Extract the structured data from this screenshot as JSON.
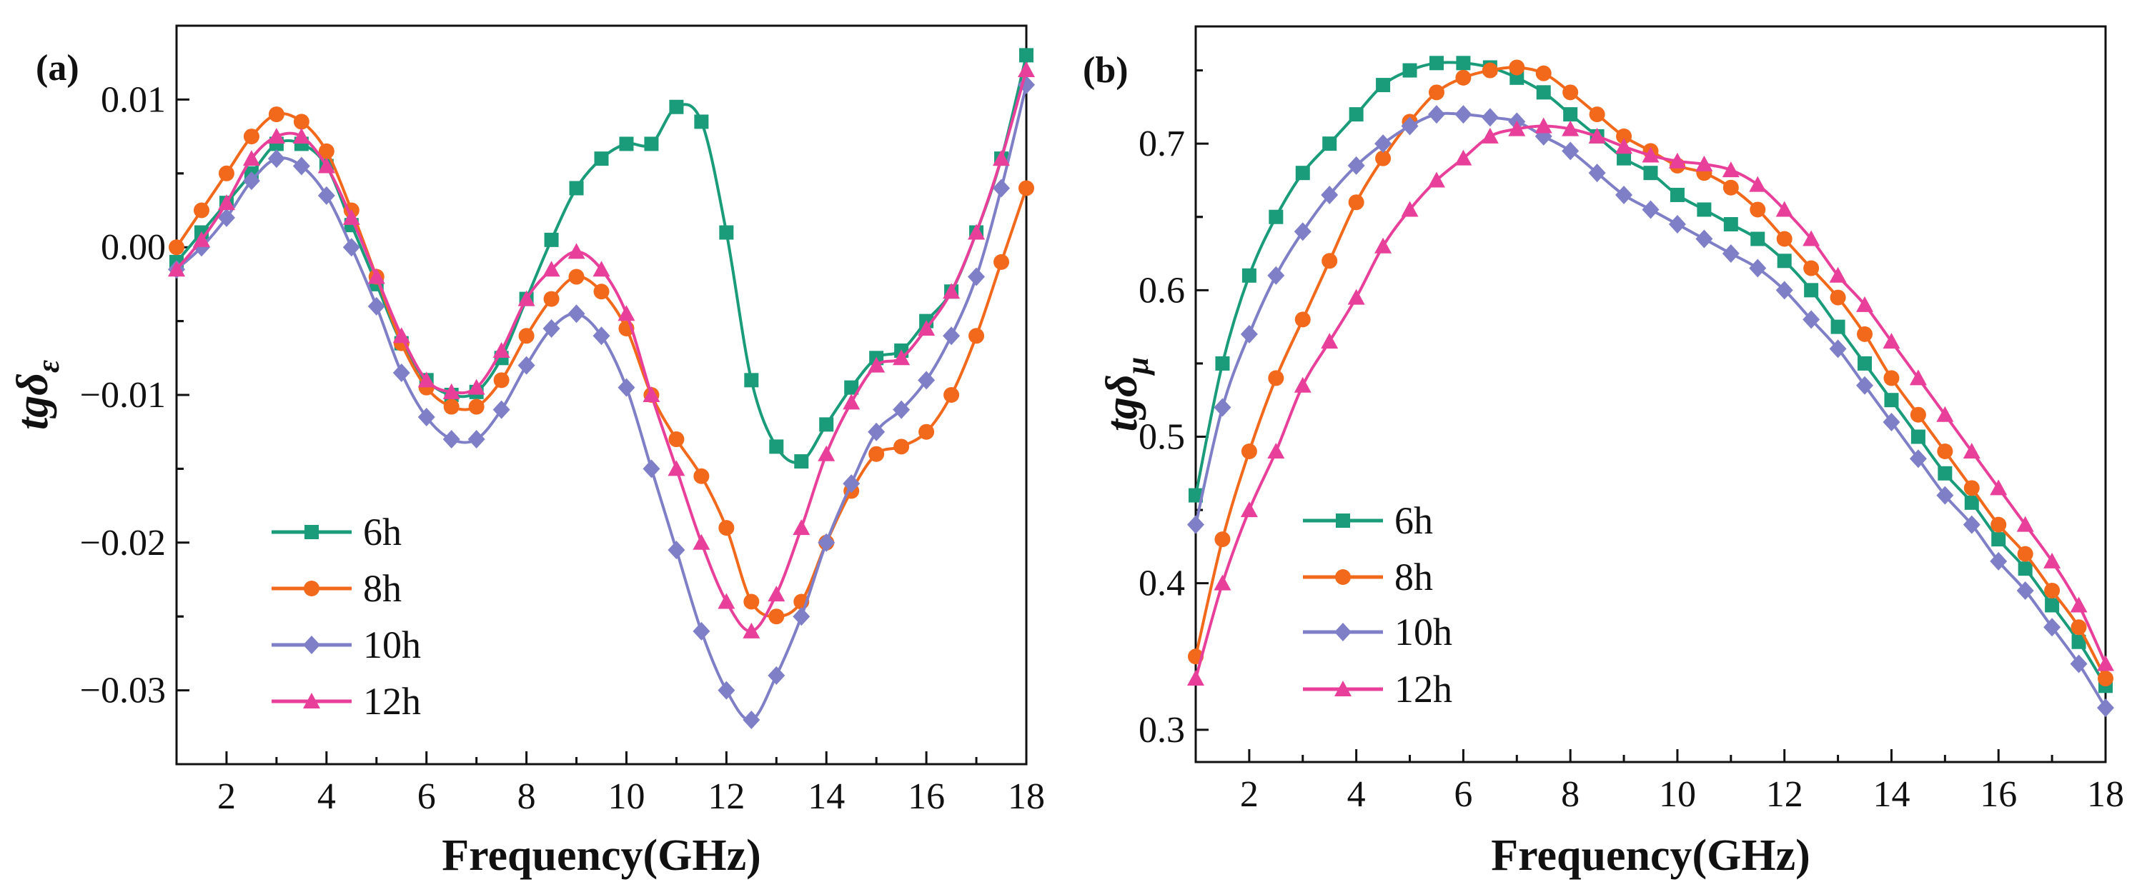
{
  "chart_data": [
    {
      "type": "line",
      "panel_label": "(a)",
      "xlabel": "Frequency(GHz)",
      "ylabel_base": "tgδ",
      "ylabel_sub": "ε",
      "xlim": [
        1,
        18
      ],
      "ylim": [
        -0.035,
        0.015
      ],
      "xticks": [
        2,
        4,
        6,
        8,
        10,
        12,
        14,
        16,
        18
      ],
      "xtick_labels": [
        "2",
        "4",
        "6",
        "8",
        "10",
        "12",
        "14",
        "16",
        "18"
      ],
      "yticks": [
        0.01,
        0.0,
        -0.01,
        -0.02,
        -0.03
      ],
      "ytick_labels": [
        "0.01",
        "0.00",
        "−0.01",
        "−0.02",
        "−0.03"
      ],
      "legend_position": "bottom-left",
      "grid": false,
      "x": [
        1,
        1.5,
        2,
        2.5,
        3,
        3.5,
        4,
        4.5,
        5,
        5.5,
        6,
        6.5,
        7,
        7.5,
        8,
        8.5,
        9,
        9.5,
        10,
        10.5,
        11,
        11.5,
        12,
        12.5,
        13,
        13.5,
        14,
        14.5,
        15,
        15.5,
        16,
        16.5,
        17,
        17.5,
        18
      ],
      "series": [
        {
          "name": "6h",
          "color": "#1a9c7a",
          "marker": "square",
          "values": [
            -0.001,
            0.001,
            0.003,
            0.005,
            0.007,
            0.007,
            0.0055,
            0.0015,
            -0.0025,
            -0.0065,
            -0.009,
            -0.01,
            -0.0098,
            -0.0075,
            -0.0035,
            0.0005,
            0.004,
            0.006,
            0.007,
            0.007,
            0.0095,
            0.0085,
            0.001,
            -0.009,
            -0.0135,
            -0.0145,
            -0.012,
            -0.0095,
            -0.0075,
            -0.007,
            -0.005,
            -0.003,
            0.001,
            0.006,
            0.013
          ]
        },
        {
          "name": "8h",
          "color": "#f2691c",
          "marker": "circle",
          "values": [
            0.0,
            0.0025,
            0.005,
            0.0075,
            0.009,
            0.0085,
            0.0065,
            0.0025,
            -0.002,
            -0.0065,
            -0.0095,
            -0.0108,
            -0.0108,
            -0.009,
            -0.006,
            -0.0035,
            -0.002,
            -0.003,
            -0.0055,
            -0.01,
            -0.013,
            -0.0155,
            -0.019,
            -0.024,
            -0.025,
            -0.024,
            -0.02,
            -0.0165,
            -0.014,
            -0.0135,
            -0.0125,
            -0.01,
            -0.006,
            -0.001,
            0.004
          ]
        },
        {
          "name": "10h",
          "color": "#7f7fc8",
          "marker": "diamond",
          "values": [
            -0.0015,
            0.0,
            0.002,
            0.0045,
            0.006,
            0.0055,
            0.0035,
            0.0,
            -0.004,
            -0.0085,
            -0.0115,
            -0.013,
            -0.013,
            -0.011,
            -0.008,
            -0.0055,
            -0.0045,
            -0.006,
            -0.0095,
            -0.015,
            -0.0205,
            -0.026,
            -0.03,
            -0.032,
            -0.029,
            -0.025,
            -0.02,
            -0.016,
            -0.0125,
            -0.011,
            -0.009,
            -0.006,
            -0.002,
            0.004,
            0.011
          ]
        },
        {
          "name": "12h",
          "color": "#e8409a",
          "marker": "triangle",
          "values": [
            -0.0015,
            0.0005,
            0.003,
            0.006,
            0.0075,
            0.0075,
            0.0055,
            0.002,
            -0.002,
            -0.006,
            -0.009,
            -0.0098,
            -0.0095,
            -0.007,
            -0.0035,
            -0.0015,
            -0.0003,
            -0.0015,
            -0.0045,
            -0.01,
            -0.015,
            -0.02,
            -0.024,
            -0.026,
            -0.0235,
            -0.019,
            -0.014,
            -0.0105,
            -0.008,
            -0.0075,
            -0.0055,
            -0.003,
            0.001,
            0.006,
            0.012
          ]
        }
      ]
    },
    {
      "type": "line",
      "panel_label": "(b)",
      "xlabel": "Frequency(GHz)",
      "ylabel_base": "tgδ",
      "ylabel_sub": "μ",
      "xlim": [
        1,
        18
      ],
      "ylim": [
        0.278,
        0.78
      ],
      "xticks": [
        2,
        4,
        6,
        8,
        10,
        12,
        14,
        16,
        18
      ],
      "xtick_labels": [
        "2",
        "4",
        "6",
        "8",
        "10",
        "12",
        "14",
        "16",
        "18"
      ],
      "yticks": [
        0.7,
        0.6,
        0.5,
        0.4,
        0.3
      ],
      "ytick_labels": [
        "0.7",
        "0.6",
        "0.5",
        "0.4",
        "0.3"
      ],
      "legend_position": "bottom-left",
      "grid": false,
      "x": [
        1,
        1.5,
        2,
        2.5,
        3,
        3.5,
        4,
        4.5,
        5,
        5.5,
        6,
        6.5,
        7,
        7.5,
        8,
        8.5,
        9,
        9.5,
        10,
        10.5,
        11,
        11.5,
        12,
        12.5,
        13,
        13.5,
        14,
        14.5,
        15,
        15.5,
        16,
        16.5,
        17,
        17.5,
        18
      ],
      "series": [
        {
          "name": "6h",
          "color": "#1a9c7a",
          "marker": "square",
          "values": [
            0.46,
            0.55,
            0.61,
            0.65,
            0.68,
            0.7,
            0.72,
            0.74,
            0.75,
            0.755,
            0.755,
            0.752,
            0.745,
            0.735,
            0.72,
            0.705,
            0.69,
            0.68,
            0.665,
            0.655,
            0.645,
            0.635,
            0.62,
            0.6,
            0.575,
            0.55,
            0.525,
            0.5,
            0.475,
            0.455,
            0.43,
            0.41,
            0.385,
            0.36,
            0.33
          ]
        },
        {
          "name": "8h",
          "color": "#f2691c",
          "marker": "circle",
          "values": [
            0.35,
            0.43,
            0.49,
            0.54,
            0.58,
            0.62,
            0.66,
            0.69,
            0.715,
            0.735,
            0.745,
            0.75,
            0.752,
            0.748,
            0.735,
            0.72,
            0.705,
            0.695,
            0.685,
            0.68,
            0.67,
            0.655,
            0.635,
            0.615,
            0.595,
            0.57,
            0.54,
            0.515,
            0.49,
            0.465,
            0.44,
            0.42,
            0.395,
            0.37,
            0.335
          ]
        },
        {
          "name": "10h",
          "color": "#7f7fc8",
          "marker": "diamond",
          "values": [
            0.44,
            0.52,
            0.57,
            0.61,
            0.64,
            0.665,
            0.685,
            0.7,
            0.712,
            0.72,
            0.72,
            0.718,
            0.715,
            0.705,
            0.695,
            0.68,
            0.665,
            0.655,
            0.645,
            0.635,
            0.625,
            0.615,
            0.6,
            0.58,
            0.56,
            0.535,
            0.51,
            0.485,
            0.46,
            0.44,
            0.415,
            0.395,
            0.37,
            0.345,
            0.315
          ]
        },
        {
          "name": "12h",
          "color": "#e8409a",
          "marker": "triangle",
          "values": [
            0.335,
            0.4,
            0.45,
            0.49,
            0.535,
            0.565,
            0.595,
            0.63,
            0.655,
            0.675,
            0.69,
            0.705,
            0.71,
            0.712,
            0.71,
            0.705,
            0.698,
            0.692,
            0.688,
            0.686,
            0.682,
            0.672,
            0.655,
            0.635,
            0.61,
            0.59,
            0.565,
            0.54,
            0.515,
            0.49,
            0.465,
            0.44,
            0.415,
            0.385,
            0.345
          ]
        }
      ]
    }
  ]
}
